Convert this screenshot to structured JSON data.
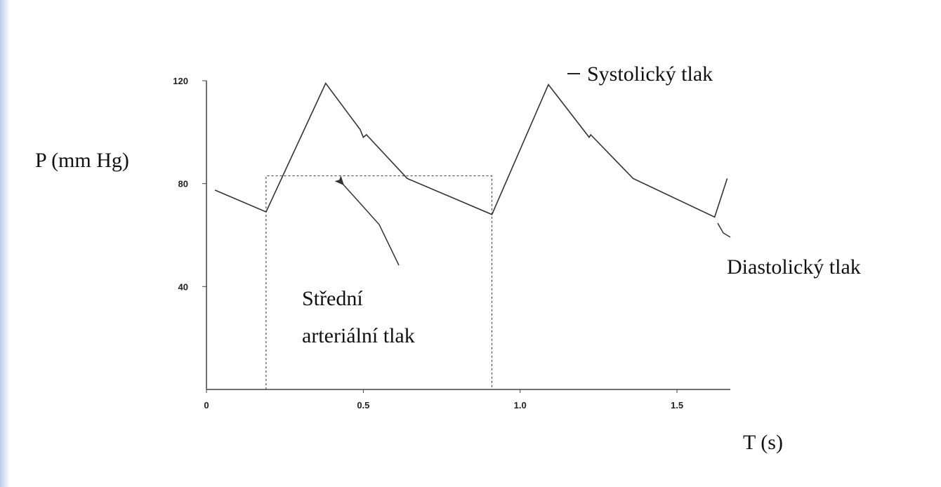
{
  "chart_data": {
    "type": "line",
    "x_label": "T (s)",
    "y_label": "P (mm Hg)",
    "x": [
      0.027,
      0.19,
      0.38,
      0.49,
      0.5,
      0.51,
      0.64,
      0.91,
      1.09,
      1.22,
      1.225,
      1.36,
      1.62,
      1.66
    ],
    "y": [
      77.5,
      69,
      119,
      101,
      98,
      99,
      82,
      68,
      118.5,
      98,
      99,
      82,
      67,
      82
    ],
    "color": "#333",
    "xlim": [
      0,
      1.67
    ],
    "ylim": [
      0,
      120
    ],
    "xticks": [
      0,
      0.5,
      {
        "value": 1,
        "label": "1.0"
      },
      1.5
    ],
    "yticks": [
      40,
      80,
      120
    ],
    "mean_box": {
      "x0": 0.19,
      "x1": 0.91,
      "y": 83
    },
    "annotations": [
      "Systolický tlak",
      "Střední",
      "arteriální tlak",
      "Diastolický tlak"
    ]
  }
}
